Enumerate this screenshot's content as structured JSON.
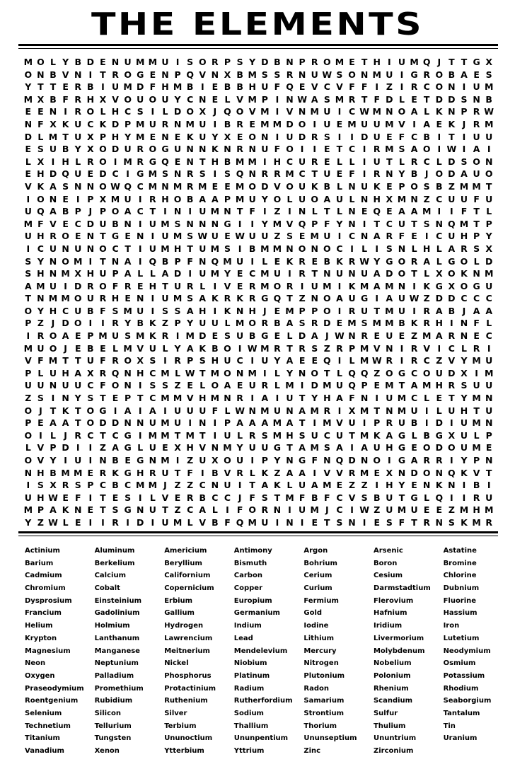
{
  "title": "THE ELEMENTS",
  "grid_rows": [
    "MOLYBDENUMMUISORPSYDBNPROMETHIUMQJTTGX",
    "ONBVNITROGENPQVNXBMSSRNUWSONMUIGROBAES",
    "YTTERBIUMDFHMBIEBBHUFQEVCVFFIZIRCONIUM",
    "MXBFRHXVOUOUYCNELVMPINWASMRTFDLETDDSNB",
    "EENIROLHCSILDOXJQOVMIVNMUICWMNOALKNPRW",
    "NFXKUCKDPMURNMUIBREMMDOIUEMUUMVIAEKJRM",
    "DLMTUXPHYMENEKUYXEONIUDRSIIDUEFCBITIUU",
    "ESUBYXODUROGUNNKNRNUFOIIETCIRMSAOIWIAI",
    "LXIHLROIMRGQENTHBMMIHCURELLIUTLRCLDSON",
    "EHDQUEDCIGMSNRSISQNRRMCTUEFIRNYBJODAUO",
    "VKASNNOWQCMNMRMEEMODVOUKBLNUKEPOSBZMMT",
    "IONEIPXMUIRHOBAAPMUYOLUOAULNHXMNZCUUFU",
    "UQABPJPOACTINIUMNTFIZINLTLNEQEAAMIIFTL",
    "MFVECDUBNIUMSNNNGIIYMVQPFYNITCUTSNQMTP",
    "UHROENTGENIUMSWUEWUUZSEMUICNARFEICUHPY",
    "ICUNUNOCTIUMHTUMSIBMMNONOCILISNLHLARSX",
    "SYNOMITNAIQBPFNQMUILEKREBKRWYGORALGOLD",
    "SHNMXHUPALLADIUMYECMUIRTNUNUADOTLXOKNM",
    "AMUIDROFREHTURLIVERMORIUMIKMAMNIKGXOGU",
    "TNMMOURHENIUMSAKRKRGQTZNOAUGIAUWZDDCCC",
    "OYHCUBFSMUISSAHIKNHJEMPPOIRUTMUIRABJAA",
    "PZJDOIIRYBKZPYUULMORBASRDEMSMMBKRHINFL",
    "IROAEPMUSMKRIMDESUBGELDAJWNREUEZMARNEC",
    "MUOJEBELMVULYAKBOIWMRTRSZRPMVNIRVICLRI",
    "VFMTTUFROXSIRPSHUCIUYAEEQILMWRIRCZVYMU",
    "PLUHAXRQNHCMLWTMONMILYNOTLQQZOGCOUDXIM",
    "UUNUUCFONISSZELOAEURLMIDMUQPEMTAMHRSUU",
    "ZSINYSTEPTCMMVHMNRIAIUTYHAFNIUMCLETYMN",
    "OJTKTOGIAIAIUUUFLWNMUNAMRIXMTNMUILUHTU",
    "PEAATODDNNUMUINIPAAAMATIMVUIPRUBIDIUMN",
    "OILJRCTCGIMMTMTIULRSMHSUCUTMKAGLBGXULP",
    "LVPDIIZAGLUEXHVNMYUUGTAMSAIAUHGEODOUME",
    "OVYIUINBEGNMIZUXOUIPYNGFNQDNOIGARRIYPN",
    "NHBMMERKGHRUTFIBVRLKZAAIVVRMEXNDONQKVT",
    "ISXRSPCBCMMJZZCNUITAKLUAMEZZIHYENKNIBI",
    "UHWEFITESILVERBCCJFSTMFBFCVSBUTGLQIIRU",
    "MPAKNETSGNUTZCALIFORNIUMJCIWZUMUEEZMHM",
    "YZWLEIIRIDIUMLVBFQMUINIETSNIESFTRNSKMR"
  ],
  "words": [
    "Actinium",
    "Aluminum",
    "Americium",
    "Antimony",
    "Argon",
    "Arsenic",
    "Astatine",
    "Barium",
    "Berkelium",
    "Beryllium",
    "Bismuth",
    "Bohrium",
    "Boron",
    "Bromine",
    "Cadmium",
    "Calcium",
    "Californium",
    "Carbon",
    "Cerium",
    "Cesium",
    "Chlorine",
    "Chromium",
    "Cobalt",
    "Copernicium",
    "Copper",
    "Curium",
    "Darmstadtium",
    "Dubnium",
    "Dysprosium",
    "Einsteinium",
    "Erbium",
    "Europium",
    "Fermium",
    "Flerovium",
    "Fluorine",
    "Francium",
    "Gadolinium",
    "Gallium",
    "Germanium",
    "Gold",
    "Hafnium",
    "Hassium",
    "Helium",
    "Holmium",
    "Hydrogen",
    "Indium",
    "Iodine",
    "Iridium",
    "Iron",
    "Krypton",
    "Lanthanum",
    "Lawrencium",
    "Lead",
    "Lithium",
    "Livermorium",
    "Lutetium",
    "Magnesium",
    "Manganese",
    "Meitnerium",
    "Mendelevium",
    "Mercury",
    "Molybdenum",
    "Neodymium",
    "Neon",
    "Neptunium",
    "Nickel",
    "Niobium",
    "Nitrogen",
    "Nobelium",
    "Osmium",
    "Oxygen",
    "Palladium",
    "Phosphorus",
    "Platinum",
    "Plutonium",
    "Polonium",
    "Potassium",
    "Praseodymium",
    "Promethium",
    "Protactinium",
    "Radium",
    "Radon",
    "Rhenium",
    "Rhodium",
    "Roentgenium",
    "Rubidium",
    "Ruthenium",
    "Rutherfordium",
    "Samarium",
    "Scandium",
    "Seaborgium",
    "Selenium",
    "Silicon",
    "Silver",
    "Sodium",
    "Strontium",
    "Sulfur",
    "Tantalum",
    "Technetium",
    "Tellurium",
    "Terbium",
    "Thallium",
    "Thorium",
    "Thulium",
    "Tin",
    "Titanium",
    "Tungsten",
    "Ununoctium",
    "Ununpentium",
    "Ununseptium",
    "Ununtrium",
    "Uranium",
    "Vanadium",
    "Xenon",
    "Ytterbium",
    "Yttrium",
    "Zinc",
    "Zirconium"
  ]
}
